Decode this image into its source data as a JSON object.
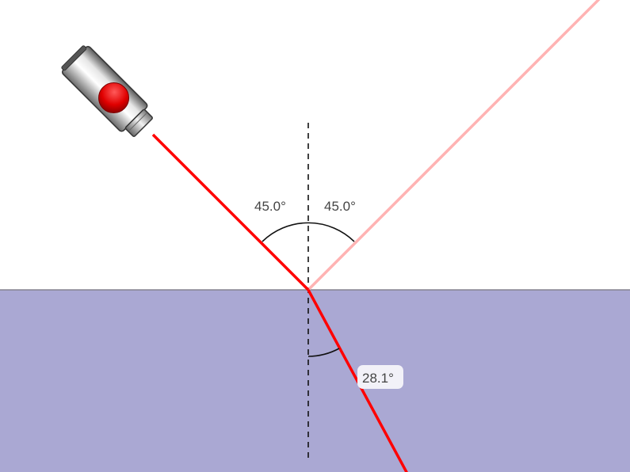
{
  "colors": {
    "background": "#ffffff",
    "medium": "#aaa8d3",
    "interface_line": "#85838f",
    "beam": "#ff0000",
    "reflected_beam": "#ffb3b3",
    "label_background": "#f2f1f8"
  },
  "angles": {
    "incidence": "45.0°",
    "reflection": "45.0°",
    "refraction": "28.1°"
  },
  "laser": {
    "icon": "laser-pointer-icon"
  }
}
